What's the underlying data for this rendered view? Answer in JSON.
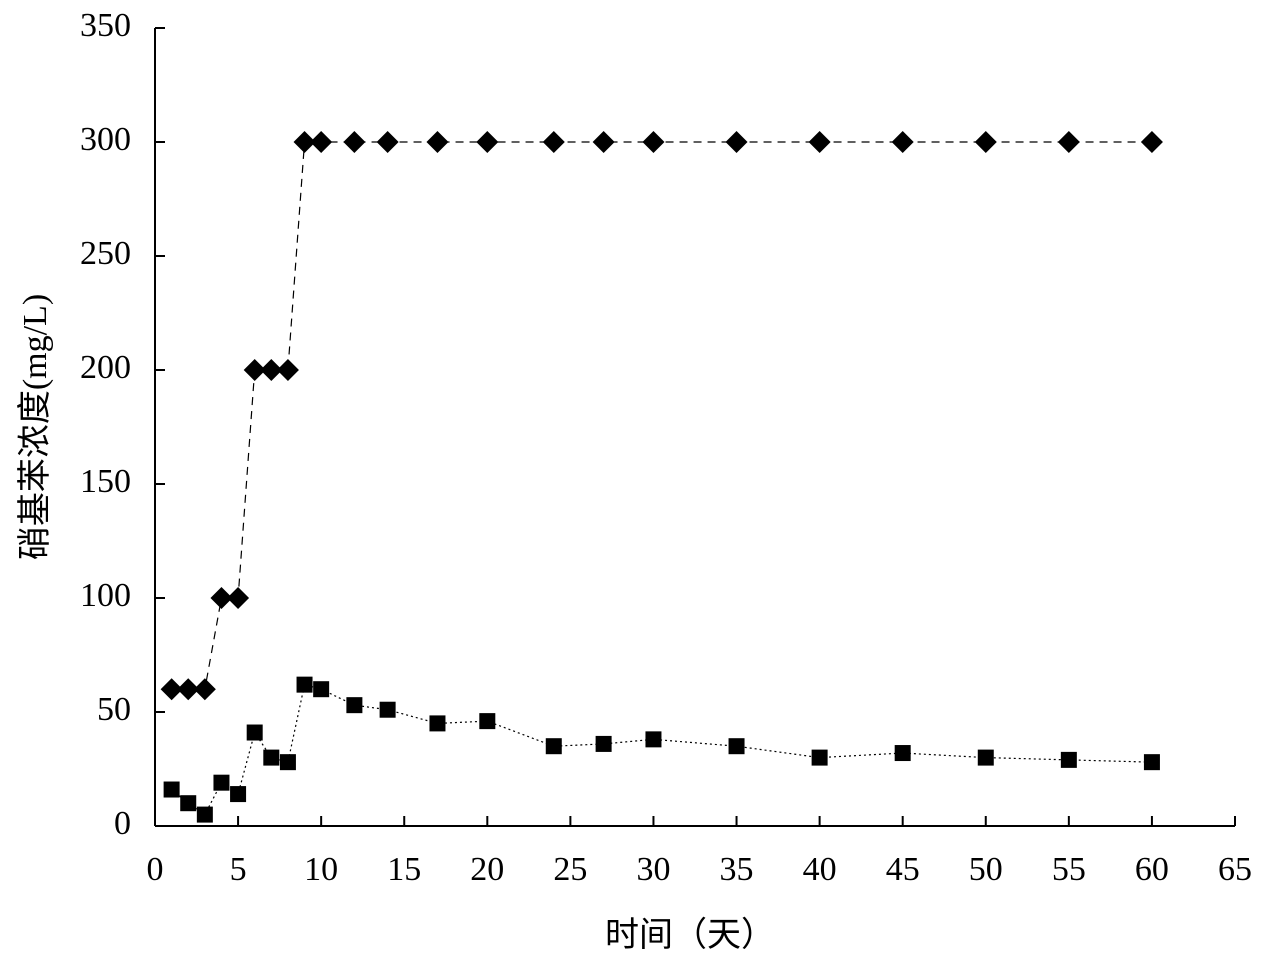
{
  "chart_data": {
    "type": "line",
    "x_label": "时间（天）",
    "y_label": "硝基苯浓度(mg/L)",
    "x": [
      1,
      2,
      3,
      4,
      5,
      6,
      7,
      8,
      9,
      10,
      12,
      14,
      17,
      20,
      24,
      27,
      30,
      35,
      40,
      45,
      50,
      55,
      60
    ],
    "series": [
      {
        "marker": "diamond",
        "color": "#000000",
        "dash": "8,6",
        "values": [
          60,
          60,
          60,
          100,
          100,
          200,
          200,
          200,
          300,
          300,
          300,
          300,
          300,
          300,
          300,
          300,
          300,
          300,
          300,
          300,
          300,
          300,
          300
        ]
      },
      {
        "marker": "square",
        "color": "#000000",
        "dash": "2,3",
        "values": [
          16,
          10,
          5,
          19,
          14,
          41,
          30,
          28,
          62,
          60,
          53,
          51,
          45,
          46,
          35,
          36,
          38,
          35,
          30,
          32,
          30,
          29,
          28
        ]
      }
    ],
    "xlim": [
      0,
      65
    ],
    "xticks": [
      0,
      5,
      10,
      15,
      20,
      25,
      30,
      35,
      40,
      45,
      50,
      55,
      60,
      65
    ],
    "ylim": [
      0,
      350
    ],
    "yticks": [
      0,
      50,
      100,
      150,
      200,
      250,
      300,
      350
    ]
  }
}
